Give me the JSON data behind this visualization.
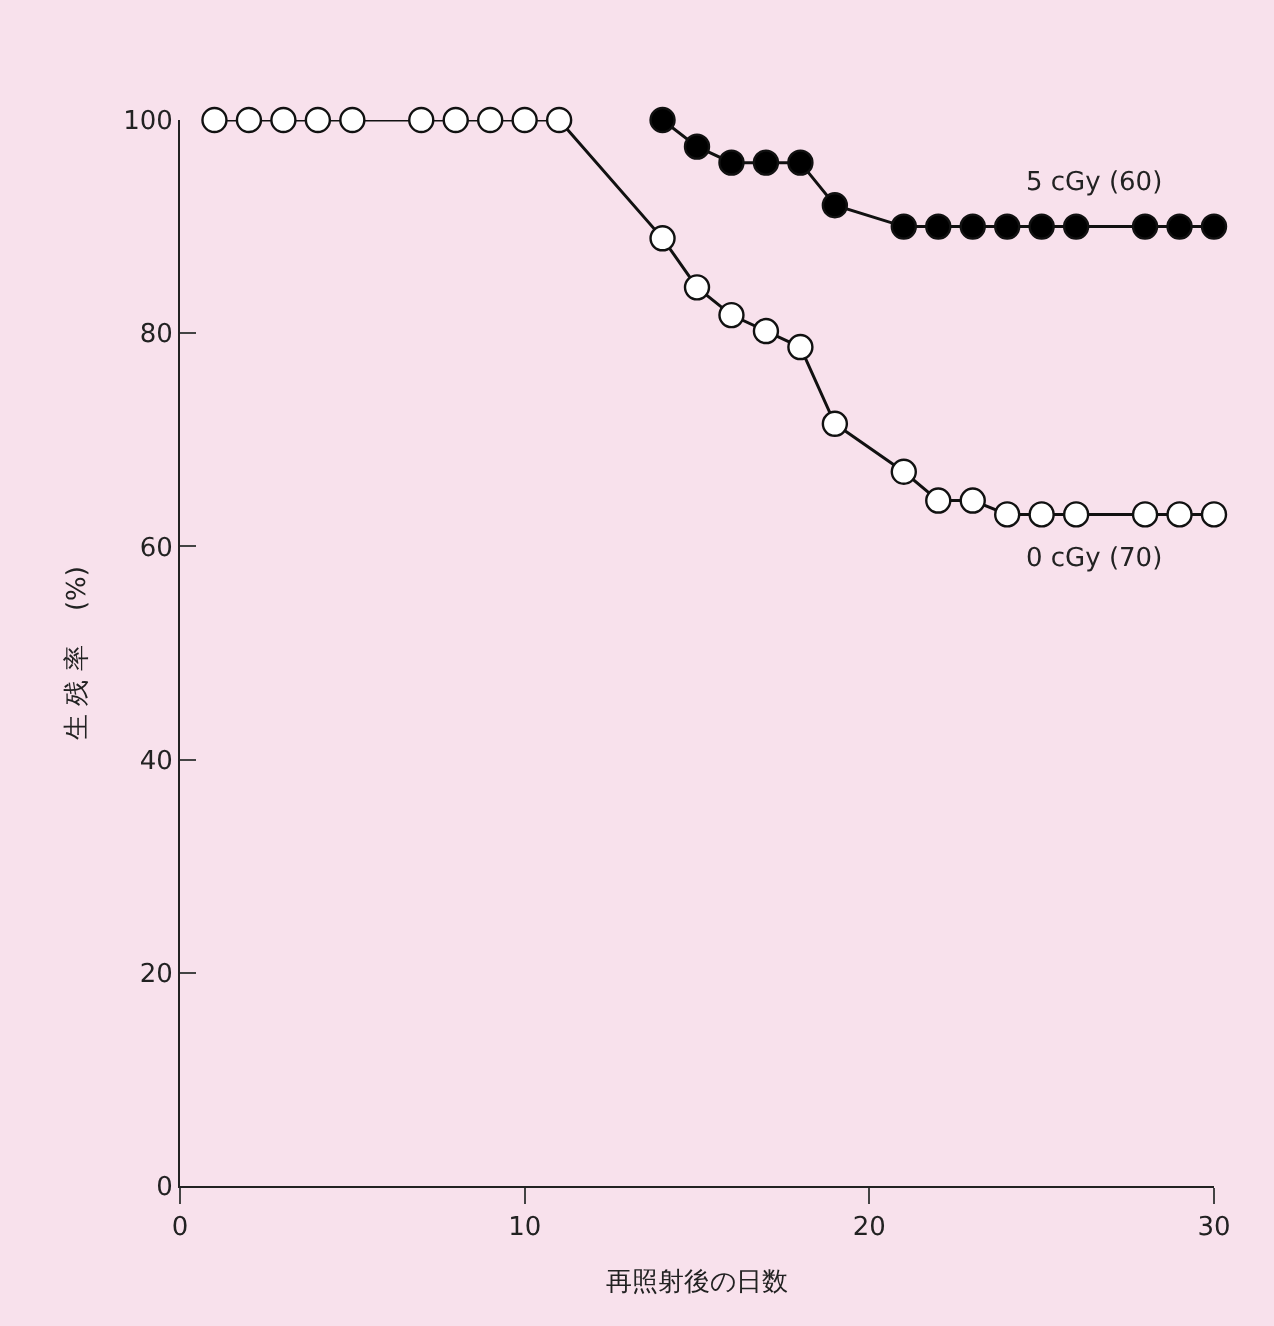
{
  "chart_data": {
    "type": "line",
    "xlabel": "再照射後の日数",
    "ylabel": "生 残 率 　(%)",
    "xlim": [
      0,
      30
    ],
    "ylim": [
      0,
      100
    ],
    "xticks": [
      0,
      10,
      20,
      30
    ],
    "yticks": [
      0,
      20,
      40,
      60,
      80,
      100
    ],
    "grid": false,
    "legend": false,
    "marker": "circle",
    "line_style": "solid",
    "series": [
      {
        "name": "5 cGy (60)",
        "color": "#000000",
        "x": [
          14,
          15,
          16,
          17,
          18,
          19,
          21,
          22,
          23,
          24,
          25,
          26,
          28,
          29,
          30
        ],
        "values": [
          100,
          97.5,
          96,
          96,
          96,
          92,
          90,
          90,
          90,
          90,
          90,
          90,
          90,
          90,
          90
        ]
      },
      {
        "name": "0 cGy (70)",
        "color": "#ffffff",
        "x": [
          1,
          2,
          3,
          4,
          5,
          7,
          8,
          9,
          10,
          11,
          14,
          15,
          16,
          17,
          18,
          19,
          21,
          22,
          23,
          24,
          25,
          26,
          28,
          29,
          30
        ],
        "values": [
          100,
          100,
          100,
          100,
          100,
          100,
          100,
          100,
          100,
          100,
          88.9,
          84.3,
          81.7,
          80.2,
          78.7,
          71.5,
          67,
          64.3,
          64.3,
          63,
          63,
          63,
          63,
          63,
          63
        ]
      }
    ]
  }
}
